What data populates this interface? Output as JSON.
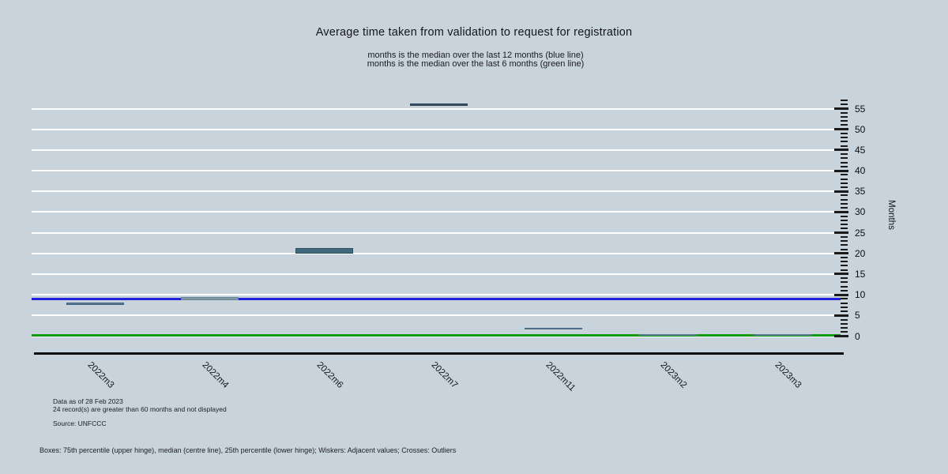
{
  "colors": {
    "background": "#c8d3dc",
    "gridline": "#ffffff",
    "axis": "#0d0d0d",
    "blue_line": "#2020dd",
    "green_line": "#0f9b12"
  },
  "chart_data": {
    "type": "box",
    "title": "Average time taken from validation to request for registration",
    "subtitle_line1": "months is the median over the last 12 months (blue line)",
    "subtitle_line2": "months is the median over the last 6 months (green line)",
    "ylabel": "Months",
    "ylim": [
      0,
      57
    ],
    "ytick_step": 5,
    "ytick_max": 55,
    "grid": true,
    "categories": [
      "2022m3",
      "2022m4",
      "2022m6",
      "2022m7",
      "2022m11",
      "2023m2",
      "2023m3"
    ],
    "boxes": [
      {
        "category": "2022m3",
        "q1": 7.5,
        "q3": 8.2,
        "color": "#5c7f9b",
        "border": "#43617a"
      },
      {
        "category": "2022m4",
        "q1": 8.7,
        "q3": 9.5,
        "color": "#8097a4",
        "border": "#6b8492"
      },
      {
        "category": "2022m6",
        "q1": 20.0,
        "q3": 21.3,
        "color": "#40697f",
        "border": "#2d4d61"
      },
      {
        "category": "2022m7",
        "q1": 55.6,
        "q3": 56.2,
        "color": "#3d566e",
        "border": "#2b3f53"
      },
      {
        "category": "2022m11",
        "q1": 1.6,
        "q3": 2.1,
        "color": "#60819f",
        "border": "#4e6c88"
      },
      {
        "category": "2023m2",
        "q1": 0.0,
        "q3": 0.45,
        "color": "#6e8a9e",
        "border": "#5c788c"
      },
      {
        "category": "2023m3",
        "q1": 0.0,
        "q3": 0.45,
        "color": "#6e8a9e",
        "border": "#5c788c"
      }
    ],
    "reference_lines": [
      {
        "name": "median-last-12-months",
        "value": 9,
        "color": "#2020dd"
      },
      {
        "name": "median-last-6-months",
        "value": 0.15,
        "color": "#0f9b12"
      }
    ],
    "notes": {
      "data_as_of": "Data as of 28 Feb 2023",
      "records_note": "24 record(s) are greater than 60 months and not displayed",
      "source": "Source: UNFCCC",
      "legend_note": "Boxes: 75th percentile (upper hinge), median (centre line), 25th percentile (lower hinge); Wiskers: Adjacent values; Crosses: Outliers"
    }
  }
}
